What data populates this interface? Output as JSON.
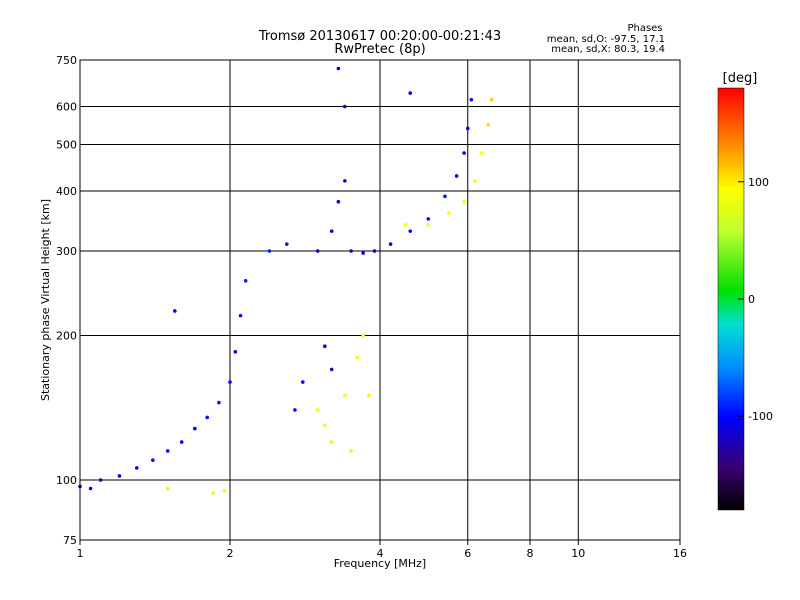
{
  "header": {
    "title": "Tromsø 20130617 00:20:00-00:21:43",
    "subtitle": "RwPretec (8p)",
    "stats_title": "Phases",
    "stats_line1": "mean, sd,O: -97.5, 17.1",
    "stats_line2": "mean, sd,X: 80.3, 19.4"
  },
  "chart_data": {
    "type": "scatter",
    "xlabel": "Frequency [MHz]",
    "ylabel": "Stationary phase Virtual Height [km]",
    "x_scale": "log",
    "y_scale": "log",
    "xlim": [
      1,
      16
    ],
    "ylim": [
      75,
      750
    ],
    "x_ticks": [
      1,
      2,
      4,
      6,
      8,
      10,
      16
    ],
    "y_ticks": [
      75,
      100,
      200,
      300,
      400,
      500,
      600,
      750
    ],
    "grid": true,
    "colorbar": {
      "label": "[deg]",
      "range": [
        -180,
        180
      ],
      "ticks": [
        -100,
        0,
        100
      ]
    },
    "series": [
      {
        "mode": "O",
        "phase_mean": -97.5,
        "phase_sd": 17.1,
        "points": [
          {
            "x": 1.0,
            "y": 97,
            "phase": -110
          },
          {
            "x": 1.05,
            "y": 96,
            "phase": -108
          },
          {
            "x": 1.1,
            "y": 100,
            "phase": -112
          },
          {
            "x": 1.2,
            "y": 102,
            "phase": -105
          },
          {
            "x": 1.3,
            "y": 106,
            "phase": -100
          },
          {
            "x": 1.4,
            "y": 110,
            "phase": -98
          },
          {
            "x": 1.5,
            "y": 115,
            "phase": -95
          },
          {
            "x": 1.6,
            "y": 120,
            "phase": -100
          },
          {
            "x": 1.7,
            "y": 128,
            "phase": -102
          },
          {
            "x": 1.8,
            "y": 135,
            "phase": -97
          },
          {
            "x": 1.9,
            "y": 145,
            "phase": -93
          },
          {
            "x": 2.0,
            "y": 160,
            "phase": -95
          },
          {
            "x": 2.05,
            "y": 185,
            "phase": -100
          },
          {
            "x": 2.1,
            "y": 220,
            "phase": -98
          },
          {
            "x": 2.15,
            "y": 260,
            "phase": -92
          },
          {
            "x": 2.4,
            "y": 300,
            "phase": -90
          },
          {
            "x": 2.6,
            "y": 310,
            "phase": -95
          },
          {
            "x": 1.55,
            "y": 225,
            "phase": -100
          },
          {
            "x": 3.0,
            "y": 300,
            "phase": -118
          },
          {
            "x": 3.2,
            "y": 330,
            "phase": -120
          },
          {
            "x": 3.3,
            "y": 380,
            "phase": -122
          },
          {
            "x": 3.4,
            "y": 420,
            "phase": -118
          },
          {
            "x": 3.5,
            "y": 300,
            "phase": -115
          },
          {
            "x": 3.7,
            "y": 297,
            "phase": -112
          },
          {
            "x": 3.9,
            "y": 300,
            "phase": -108
          },
          {
            "x": 4.2,
            "y": 310,
            "phase": -100
          },
          {
            "x": 4.6,
            "y": 330,
            "phase": -98
          },
          {
            "x": 5.0,
            "y": 350,
            "phase": -95
          },
          {
            "x": 5.4,
            "y": 390,
            "phase": -93
          },
          {
            "x": 5.7,
            "y": 430,
            "phase": -98
          },
          {
            "x": 5.9,
            "y": 480,
            "phase": -100
          },
          {
            "x": 6.0,
            "y": 540,
            "phase": -105
          },
          {
            "x": 6.1,
            "y": 620,
            "phase": -95
          },
          {
            "x": 3.4,
            "y": 600,
            "phase": -115
          },
          {
            "x": 3.3,
            "y": 720,
            "phase": -120
          },
          {
            "x": 4.6,
            "y": 640,
            "phase": -110
          },
          {
            "x": 3.2,
            "y": 170,
            "phase": -125
          },
          {
            "x": 3.1,
            "y": 190,
            "phase": -120
          },
          {
            "x": 2.8,
            "y": 160,
            "phase": -100
          },
          {
            "x": 2.7,
            "y": 140,
            "phase": -95
          }
        ]
      },
      {
        "mode": "X",
        "phase_mean": 80.3,
        "phase_sd": 19.4,
        "points": [
          {
            "x": 3.0,
            "y": 140,
            "phase": 85
          },
          {
            "x": 3.1,
            "y": 130,
            "phase": 80
          },
          {
            "x": 3.2,
            "y": 120,
            "phase": 78
          },
          {
            "x": 3.4,
            "y": 150,
            "phase": 90
          },
          {
            "x": 3.6,
            "y": 180,
            "phase": 95
          },
          {
            "x": 3.7,
            "y": 200,
            "phase": 85
          },
          {
            "x": 3.8,
            "y": 150,
            "phase": 100
          },
          {
            "x": 3.5,
            "y": 115,
            "phase": 70
          },
          {
            "x": 4.5,
            "y": 340,
            "phase": 90
          },
          {
            "x": 5.0,
            "y": 340,
            "phase": 85
          },
          {
            "x": 5.5,
            "y": 360,
            "phase": 95
          },
          {
            "x": 5.9,
            "y": 380,
            "phase": 90
          },
          {
            "x": 6.2,
            "y": 420,
            "phase": 85
          },
          {
            "x": 6.4,
            "y": 480,
            "phase": 95
          },
          {
            "x": 6.6,
            "y": 550,
            "phase": 105
          },
          {
            "x": 6.7,
            "y": 620,
            "phase": 110
          },
          {
            "x": 1.85,
            "y": 94,
            "phase": 88
          },
          {
            "x": 1.95,
            "y": 95,
            "phase": 92
          },
          {
            "x": 1.5,
            "y": 96,
            "phase": 100
          }
        ]
      }
    ]
  }
}
